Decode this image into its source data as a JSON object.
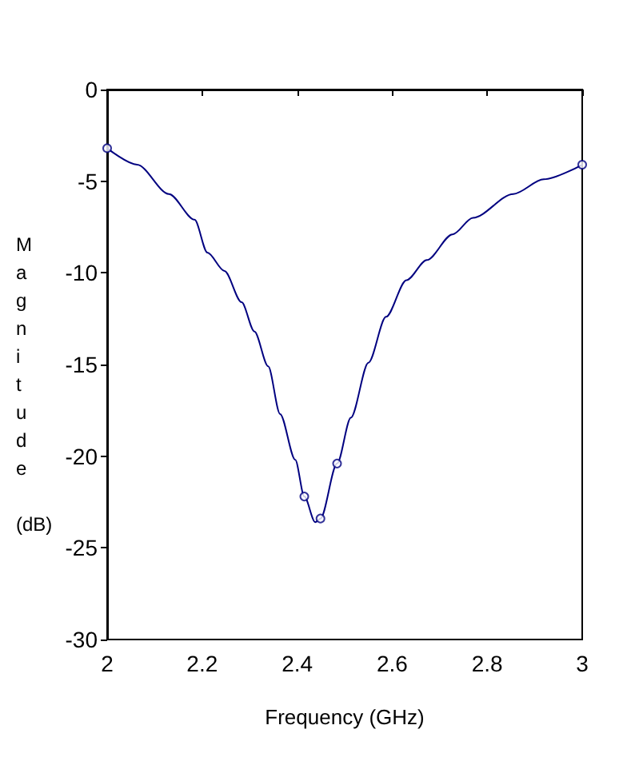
{
  "chart_data": {
    "type": "line",
    "xlabel": "Frequency (GHz)",
    "ylabel": "Magnitude (dB)",
    "xlim": [
      2,
      3
    ],
    "xticks": [
      2,
      2.2,
      2.4,
      2.6,
      2.8,
      3
    ],
    "ylim": [
      -30,
      0
    ],
    "yticks": [
      -30,
      -25,
      -20,
      -15,
      -10,
      -5,
      0
    ],
    "grid": false,
    "series": [
      {
        "color": "#000080",
        "marker": "none",
        "x": [
          2,
          2.063,
          2.13,
          2.184,
          2.211,
          2.247,
          2.283,
          2.31,
          2.339,
          2.364,
          2.396,
          2.415,
          2.438,
          2.449,
          2.484,
          2.513,
          2.55,
          2.587,
          2.63,
          2.673,
          2.727,
          2.77,
          2.855,
          2.919,
          3
        ],
        "values": [
          -3.2,
          -4.1,
          -5.7,
          -7.1,
          -8.9,
          -9.9,
          -11.6,
          -13.2,
          -15.1,
          -17.7,
          -20.2,
          -22.2,
          -23.6,
          -23.4,
          -20.4,
          -17.9,
          -14.9,
          -12.4,
          -10.4,
          -9.3,
          -7.9,
          -7.0,
          -5.7,
          -4.9,
          -4.1
        ]
      },
      {
        "type": "scatter",
        "color": "#000080",
        "marker": "circle",
        "x": [
          2,
          2.415,
          2.449,
          2.484,
          3
        ],
        "values": [
          -3.2,
          -22.2,
          -23.4,
          -20.4,
          -4.1
        ]
      }
    ]
  }
}
